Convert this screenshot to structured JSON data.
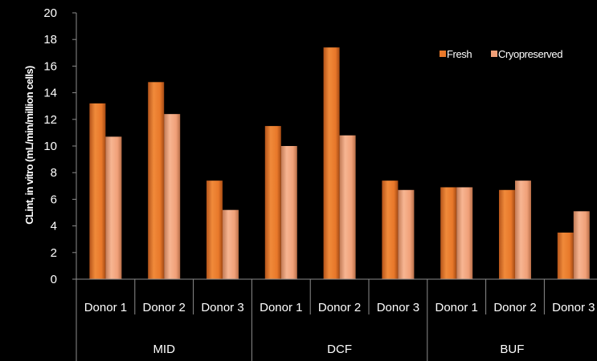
{
  "chart_data": {
    "type": "bar",
    "ylabel": "CLint, in vitro (mL/min/million cells)",
    "xlabel": "",
    "title": "",
    "ylim": [
      0,
      20
    ],
    "yticks": [
      0,
      2,
      4,
      6,
      8,
      10,
      12,
      14,
      16,
      18,
      20
    ],
    "grid": false,
    "legend_position": "top-right",
    "groups": [
      {
        "name": "MID",
        "categories": [
          "Donor 1",
          "Donor 2",
          "Donor 3"
        ]
      },
      {
        "name": "DCF",
        "categories": [
          "Donor 1",
          "Donor 2",
          "Donor 3"
        ]
      },
      {
        "name": "BUF",
        "categories": [
          "Donor 1",
          "Donor 2",
          "Donor 3"
        ]
      }
    ],
    "categories": [
      "Donor 1",
      "Donor 2",
      "Donor 3",
      "Donor 1",
      "Donor 2",
      "Donor 3",
      "Donor 1",
      "Donor 2",
      "Donor 3"
    ],
    "series": [
      {
        "name": "Fresh",
        "color": "#E8782A",
        "values": [
          13.2,
          14.8,
          7.4,
          11.5,
          17.4,
          7.4,
          6.9,
          6.7,
          3.5
        ]
      },
      {
        "name": "Cryopreserved",
        "color": "#F0A078",
        "values": [
          10.7,
          12.4,
          5.2,
          10.0,
          10.8,
          6.7,
          6.9,
          7.4,
          5.1
        ]
      }
    ]
  }
}
